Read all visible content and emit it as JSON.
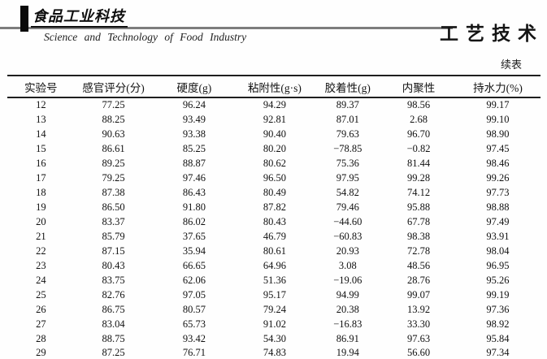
{
  "masthead": {
    "logo_cn": "食品工业科技",
    "journal_en": "Science and Technology of Food Industry",
    "section_cn": "工艺技术"
  },
  "table": {
    "continued_label": "续表",
    "columns": [
      "实验号",
      "感官评分(分)",
      "硬度(g)",
      "粘附性(g·s)",
      "胶着性(g)",
      "内聚性",
      "持水力(%)"
    ],
    "rows": [
      [
        "12",
        "77.25",
        "96.24",
        "94.29",
        "89.37",
        "98.56",
        "99.17"
      ],
      [
        "13",
        "88.25",
        "93.49",
        "92.81",
        "87.01",
        "2.68",
        "99.10"
      ],
      [
        "14",
        "90.63",
        "93.38",
        "90.40",
        "79.63",
        "96.70",
        "98.90"
      ],
      [
        "15",
        "86.61",
        "85.25",
        "80.20",
        "−78.85",
        "−0.82",
        "97.45"
      ],
      [
        "16",
        "89.25",
        "88.87",
        "80.62",
        "75.36",
        "81.44",
        "98.46"
      ],
      [
        "17",
        "79.25",
        "97.46",
        "96.50",
        "97.95",
        "99.28",
        "99.26"
      ],
      [
        "18",
        "87.38",
        "86.43",
        "80.49",
        "54.82",
        "74.12",
        "97.73"
      ],
      [
        "19",
        "86.50",
        "91.80",
        "87.82",
        "79.46",
        "95.88",
        "98.88"
      ],
      [
        "20",
        "83.37",
        "86.02",
        "80.43",
        "−44.60",
        "67.78",
        "97.49"
      ],
      [
        "21",
        "85.79",
        "37.65",
        "46.79",
        "−60.83",
        "98.38",
        "93.91"
      ],
      [
        "22",
        "87.15",
        "35.94",
        "80.61",
        "20.93",
        "72.78",
        "98.04"
      ],
      [
        "23",
        "80.43",
        "66.65",
        "64.96",
        "3.08",
        "48.56",
        "96.95"
      ],
      [
        "24",
        "83.75",
        "62.06",
        "51.36",
        "−19.06",
        "28.76",
        "95.26"
      ],
      [
        "25",
        "82.76",
        "97.05",
        "95.17",
        "94.99",
        "99.07",
        "99.19"
      ],
      [
        "26",
        "86.75",
        "80.57",
        "79.24",
        "20.38",
        "13.92",
        "97.36"
      ],
      [
        "27",
        "83.04",
        "65.73",
        "91.02",
        "−16.83",
        "33.30",
        "98.92"
      ],
      [
        "28",
        "88.75",
        "93.42",
        "54.30",
        "86.91",
        "97.63",
        "95.84"
      ],
      [
        "29",
        "87.25",
        "76.71",
        "74.83",
        "19.94",
        "56.60",
        "97.34"
      ]
    ]
  }
}
